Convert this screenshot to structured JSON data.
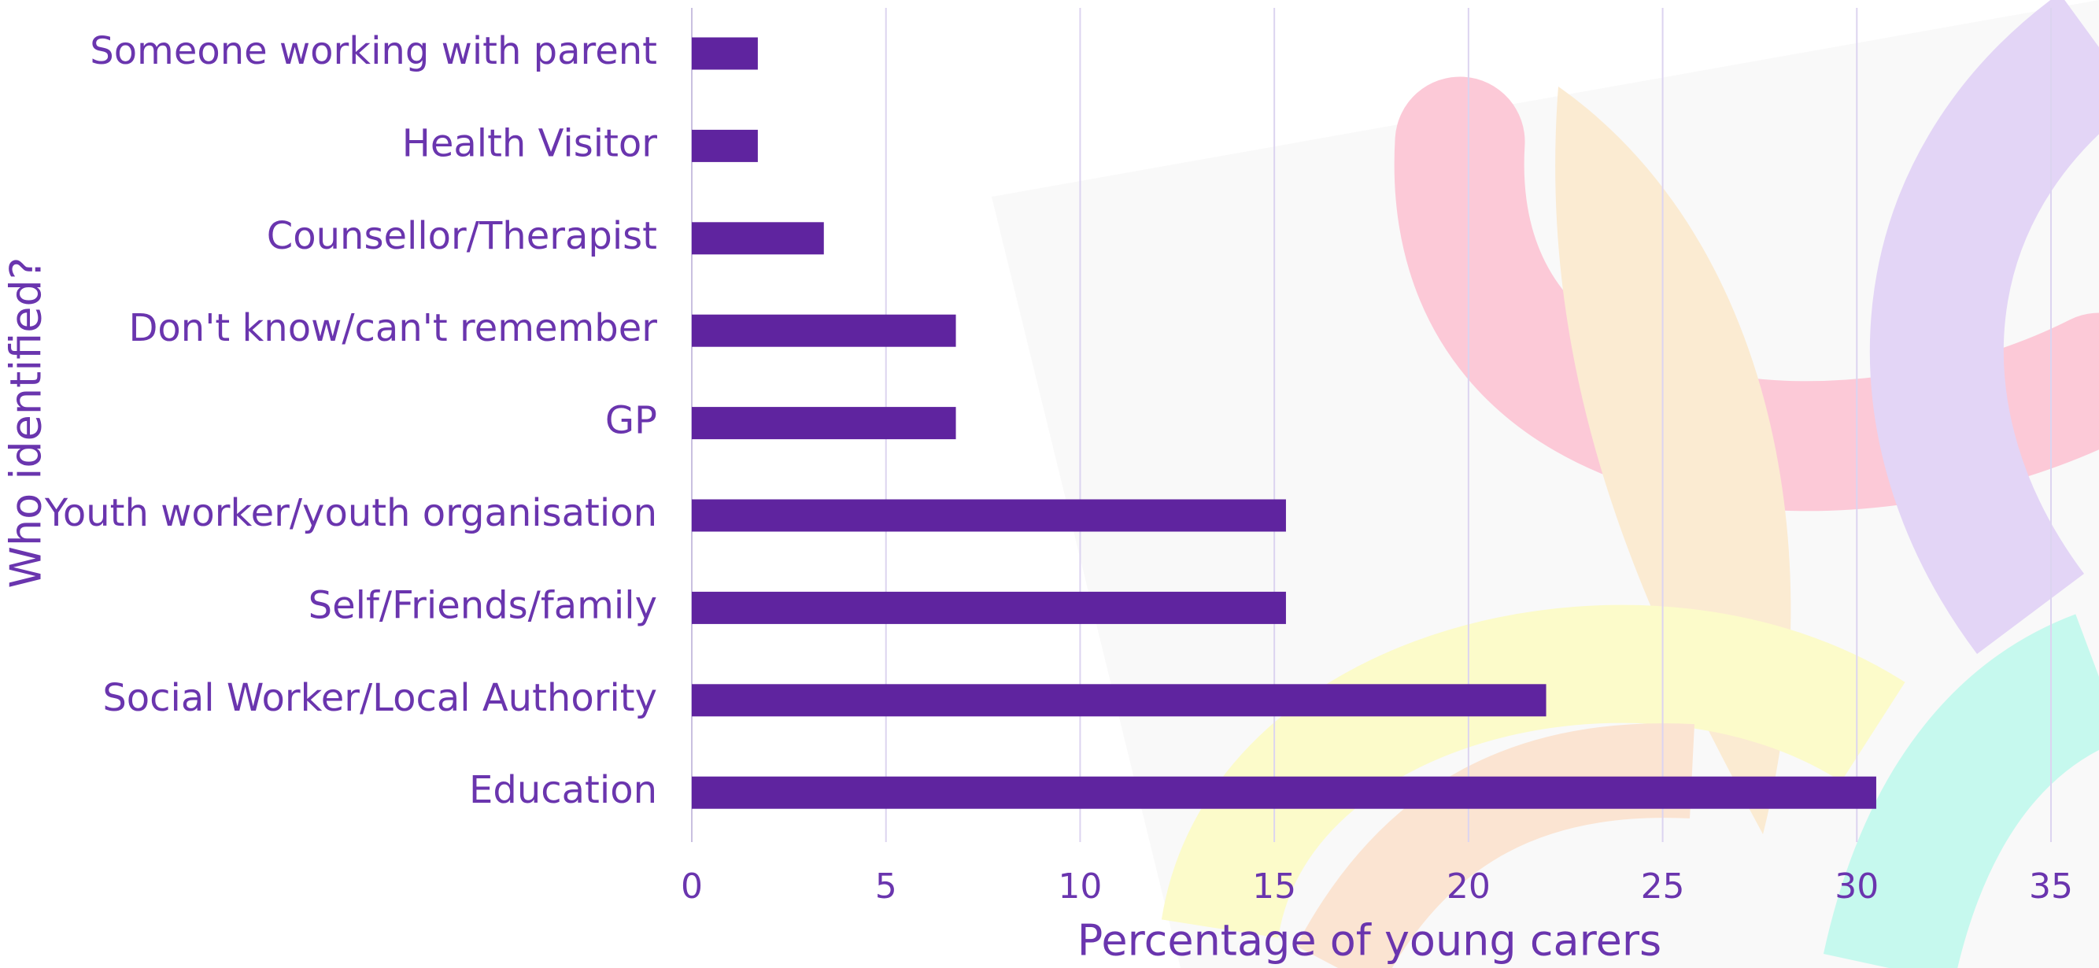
{
  "chart_data": {
    "type": "bar",
    "orientation": "horizontal",
    "x_label": "Percentage of young carers",
    "y_label": "Who identified?",
    "categories": [
      "Someone working with parent",
      "Health Visitor",
      "Counsellor/Therapist",
      "Don't know/can't remember",
      "GP",
      "Youth worker/youth organisation",
      "Self/Friends/family",
      "Social Worker/Local Authority",
      "Education"
    ],
    "values": [
      1.7,
      1.7,
      3.4,
      6.8,
      6.8,
      15.3,
      15.3,
      22.0,
      30.5
    ],
    "color": "#5f249f",
    "xlim": [
      0,
      35
    ],
    "xticks": [
      0,
      5,
      10,
      15,
      20,
      25,
      30,
      35
    ],
    "grid": true
  }
}
